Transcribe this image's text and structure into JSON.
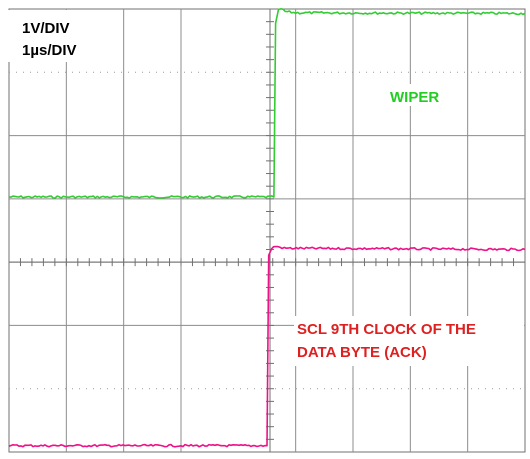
{
  "chart_data": {
    "type": "line",
    "title": "",
    "xlabel": "",
    "ylabel": "",
    "scale": {
      "vertical": "1V/DIV",
      "horizontal": "1µs/DIV"
    },
    "divisions": {
      "x": 9,
      "y": 7
    },
    "xlim": [
      0,
      9
    ],
    "grid": true,
    "annotations": [
      {
        "text": "WIPER",
        "color": "#22cc22"
      },
      {
        "text": "SCL 9TH CLOCK OF THE",
        "color": "#dd2020"
      },
      {
        "text": "DATA BYTE (ACK)",
        "color": "#dd2020"
      }
    ],
    "series": [
      {
        "color": "#33cc33",
        "x": [
          0,
          4.62,
          4.65,
          4.7,
          4.75,
          4.82,
          5.0,
          9.0
        ],
        "y": [
          4.03,
          4.03,
          6.78,
          6.98,
          7.0,
          6.96,
          6.94,
          6.93
        ]
      },
      {
        "color": "#ee1188",
        "x": [
          0,
          4.5,
          4.53,
          4.58,
          4.65,
          4.8,
          9.0
        ],
        "y": [
          0.1,
          0.1,
          3.1,
          3.22,
          3.25,
          3.22,
          3.2
        ]
      }
    ]
  }
}
